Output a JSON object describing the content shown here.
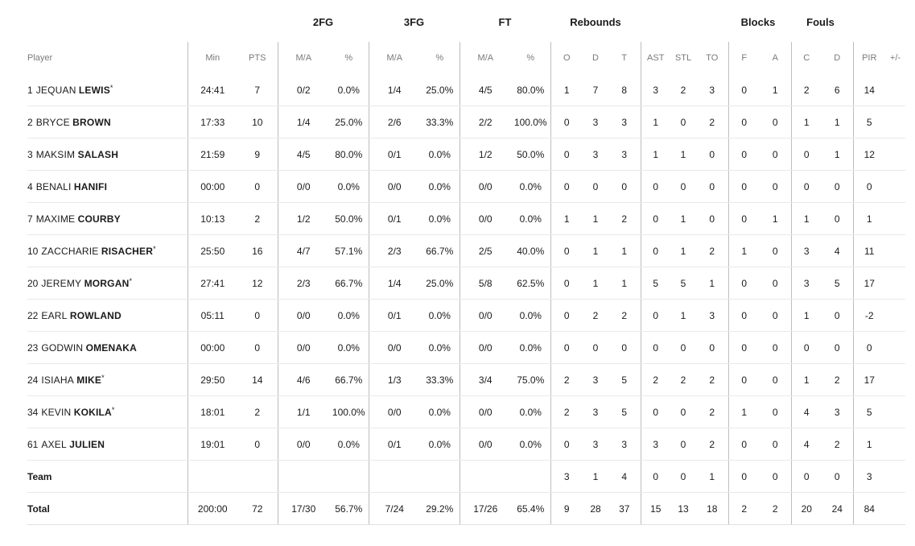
{
  "groups": {
    "fg2": "2FG",
    "fg3": "3FG",
    "ft": "FT",
    "rebounds": "Rebounds",
    "blocks": "Blocks",
    "fouls": "Fouls"
  },
  "columns": {
    "player": "Player",
    "min": "Min",
    "pts": "PTS",
    "fg2_ma": "M/A",
    "fg2_pct": "%",
    "fg3_ma": "M/A",
    "fg3_pct": "%",
    "ft_ma": "M/A",
    "ft_pct": "%",
    "reb_o": "O",
    "reb_d": "D",
    "reb_t": "T",
    "ast": "AST",
    "stl": "STL",
    "to": "TO",
    "blk_f": "F",
    "blk_a": "A",
    "foul_c": "C",
    "foul_d": "D",
    "pir": "PIR",
    "pm": "+/-"
  },
  "players": [
    {
      "number": "1",
      "first": "JEQUAN",
      "last": "LEWIS",
      "starter": "*",
      "min": "24:41",
      "pts": "7",
      "fg2_ma": "0/2",
      "fg2_pct": "0.0%",
      "fg3_ma": "1/4",
      "fg3_pct": "25.0%",
      "ft_ma": "4/5",
      "ft_pct": "80.0%",
      "reb_o": "1",
      "reb_d": "7",
      "reb_t": "8",
      "ast": "3",
      "stl": "2",
      "to": "3",
      "blk_f": "0",
      "blk_a": "1",
      "foul_c": "2",
      "foul_d": "6",
      "pir": "14",
      "pm": ""
    },
    {
      "number": "2",
      "first": "BRYCE",
      "last": "BROWN",
      "starter": "",
      "min": "17:33",
      "pts": "10",
      "fg2_ma": "1/4",
      "fg2_pct": "25.0%",
      "fg3_ma": "2/6",
      "fg3_pct": "33.3%",
      "ft_ma": "2/2",
      "ft_pct": "100.0%",
      "reb_o": "0",
      "reb_d": "3",
      "reb_t": "3",
      "ast": "1",
      "stl": "0",
      "to": "2",
      "blk_f": "0",
      "blk_a": "0",
      "foul_c": "1",
      "foul_d": "1",
      "pir": "5",
      "pm": ""
    },
    {
      "number": "3",
      "first": "MAKSIM",
      "last": "SALASH",
      "starter": "",
      "min": "21:59",
      "pts": "9",
      "fg2_ma": "4/5",
      "fg2_pct": "80.0%",
      "fg3_ma": "0/1",
      "fg3_pct": "0.0%",
      "ft_ma": "1/2",
      "ft_pct": "50.0%",
      "reb_o": "0",
      "reb_d": "3",
      "reb_t": "3",
      "ast": "1",
      "stl": "1",
      "to": "0",
      "blk_f": "0",
      "blk_a": "0",
      "foul_c": "0",
      "foul_d": "1",
      "pir": "12",
      "pm": ""
    },
    {
      "number": "4",
      "first": "BENALI",
      "last": "HANIFI",
      "starter": "",
      "min": "00:00",
      "pts": "0",
      "fg2_ma": "0/0",
      "fg2_pct": "0.0%",
      "fg3_ma": "0/0",
      "fg3_pct": "0.0%",
      "ft_ma": "0/0",
      "ft_pct": "0.0%",
      "reb_o": "0",
      "reb_d": "0",
      "reb_t": "0",
      "ast": "0",
      "stl": "0",
      "to": "0",
      "blk_f": "0",
      "blk_a": "0",
      "foul_c": "0",
      "foul_d": "0",
      "pir": "0",
      "pm": ""
    },
    {
      "number": "7",
      "first": "MAXIME",
      "last": "COURBY",
      "starter": "",
      "min": "10:13",
      "pts": "2",
      "fg2_ma": "1/2",
      "fg2_pct": "50.0%",
      "fg3_ma": "0/1",
      "fg3_pct": "0.0%",
      "ft_ma": "0/0",
      "ft_pct": "0.0%",
      "reb_o": "1",
      "reb_d": "1",
      "reb_t": "2",
      "ast": "0",
      "stl": "1",
      "to": "0",
      "blk_f": "0",
      "blk_a": "1",
      "foul_c": "1",
      "foul_d": "0",
      "pir": "1",
      "pm": ""
    },
    {
      "number": "10",
      "first": "ZACCHARIE",
      "last": "RISACHER",
      "starter": "*",
      "min": "25:50",
      "pts": "16",
      "fg2_ma": "4/7",
      "fg2_pct": "57.1%",
      "fg3_ma": "2/3",
      "fg3_pct": "66.7%",
      "ft_ma": "2/5",
      "ft_pct": "40.0%",
      "reb_o": "0",
      "reb_d": "1",
      "reb_t": "1",
      "ast": "0",
      "stl": "1",
      "to": "2",
      "blk_f": "1",
      "blk_a": "0",
      "foul_c": "3",
      "foul_d": "4",
      "pir": "11",
      "pm": ""
    },
    {
      "number": "20",
      "first": "JEREMY",
      "last": "MORGAN",
      "starter": "*",
      "min": "27:41",
      "pts": "12",
      "fg2_ma": "2/3",
      "fg2_pct": "66.7%",
      "fg3_ma": "1/4",
      "fg3_pct": "25.0%",
      "ft_ma": "5/8",
      "ft_pct": "62.5%",
      "reb_o": "0",
      "reb_d": "1",
      "reb_t": "1",
      "ast": "5",
      "stl": "5",
      "to": "1",
      "blk_f": "0",
      "blk_a": "0",
      "foul_c": "3",
      "foul_d": "5",
      "pir": "17",
      "pm": ""
    },
    {
      "number": "22",
      "first": "EARL",
      "last": "ROWLAND",
      "starter": "",
      "min": "05:11",
      "pts": "0",
      "fg2_ma": "0/0",
      "fg2_pct": "0.0%",
      "fg3_ma": "0/1",
      "fg3_pct": "0.0%",
      "ft_ma": "0/0",
      "ft_pct": "0.0%",
      "reb_o": "0",
      "reb_d": "2",
      "reb_t": "2",
      "ast": "0",
      "stl": "1",
      "to": "3",
      "blk_f": "0",
      "blk_a": "0",
      "foul_c": "1",
      "foul_d": "0",
      "pir": "-2",
      "pm": ""
    },
    {
      "number": "23",
      "first": "GODWIN",
      "last": "OMENAKA",
      "starter": "",
      "min": "00:00",
      "pts": "0",
      "fg2_ma": "0/0",
      "fg2_pct": "0.0%",
      "fg3_ma": "0/0",
      "fg3_pct": "0.0%",
      "ft_ma": "0/0",
      "ft_pct": "0.0%",
      "reb_o": "0",
      "reb_d": "0",
      "reb_t": "0",
      "ast": "0",
      "stl": "0",
      "to": "0",
      "blk_f": "0",
      "blk_a": "0",
      "foul_c": "0",
      "foul_d": "0",
      "pir": "0",
      "pm": ""
    },
    {
      "number": "24",
      "first": "ISIAHA",
      "last": "MIKE",
      "starter": "*",
      "min": "29:50",
      "pts": "14",
      "fg2_ma": "4/6",
      "fg2_pct": "66.7%",
      "fg3_ma": "1/3",
      "fg3_pct": "33.3%",
      "ft_ma": "3/4",
      "ft_pct": "75.0%",
      "reb_o": "2",
      "reb_d": "3",
      "reb_t": "5",
      "ast": "2",
      "stl": "2",
      "to": "2",
      "blk_f": "0",
      "blk_a": "0",
      "foul_c": "1",
      "foul_d": "2",
      "pir": "17",
      "pm": ""
    },
    {
      "number": "34",
      "first": "KEVIN",
      "last": "KOKILA",
      "starter": "*",
      "min": "18:01",
      "pts": "2",
      "fg2_ma": "1/1",
      "fg2_pct": "100.0%",
      "fg3_ma": "0/0",
      "fg3_pct": "0.0%",
      "ft_ma": "0/0",
      "ft_pct": "0.0%",
      "reb_o": "2",
      "reb_d": "3",
      "reb_t": "5",
      "ast": "0",
      "stl": "0",
      "to": "2",
      "blk_f": "1",
      "blk_a": "0",
      "foul_c": "4",
      "foul_d": "3",
      "pir": "5",
      "pm": ""
    },
    {
      "number": "61",
      "first": "AXEL",
      "last": "JULIEN",
      "starter": "",
      "min": "19:01",
      "pts": "0",
      "fg2_ma": "0/0",
      "fg2_pct": "0.0%",
      "fg3_ma": "0/1",
      "fg3_pct": "0.0%",
      "ft_ma": "0/0",
      "ft_pct": "0.0%",
      "reb_o": "0",
      "reb_d": "3",
      "reb_t": "3",
      "ast": "3",
      "stl": "0",
      "to": "2",
      "blk_f": "0",
      "blk_a": "0",
      "foul_c": "4",
      "foul_d": "2",
      "pir": "1",
      "pm": ""
    }
  ],
  "team": {
    "label": "Team",
    "min": "",
    "pts": "",
    "fg2_ma": "",
    "fg2_pct": "",
    "fg3_ma": "",
    "fg3_pct": "",
    "ft_ma": "",
    "ft_pct": "",
    "reb_o": "3",
    "reb_d": "1",
    "reb_t": "4",
    "ast": "0",
    "stl": "0",
    "to": "1",
    "blk_f": "0",
    "blk_a": "0",
    "foul_c": "0",
    "foul_d": "0",
    "pir": "3",
    "pm": ""
  },
  "total": {
    "label": "Total",
    "min": "200:00",
    "pts": "72",
    "fg2_ma": "17/30",
    "fg2_pct": "56.7%",
    "fg3_ma": "7/24",
    "fg3_pct": "29.2%",
    "ft_ma": "17/26",
    "ft_pct": "65.4%",
    "reb_o": "9",
    "reb_d": "28",
    "reb_t": "37",
    "ast": "15",
    "stl": "13",
    "to": "18",
    "blk_f": "2",
    "blk_a": "2",
    "foul_c": "20",
    "foul_d": "24",
    "pir": "84",
    "pm": ""
  }
}
